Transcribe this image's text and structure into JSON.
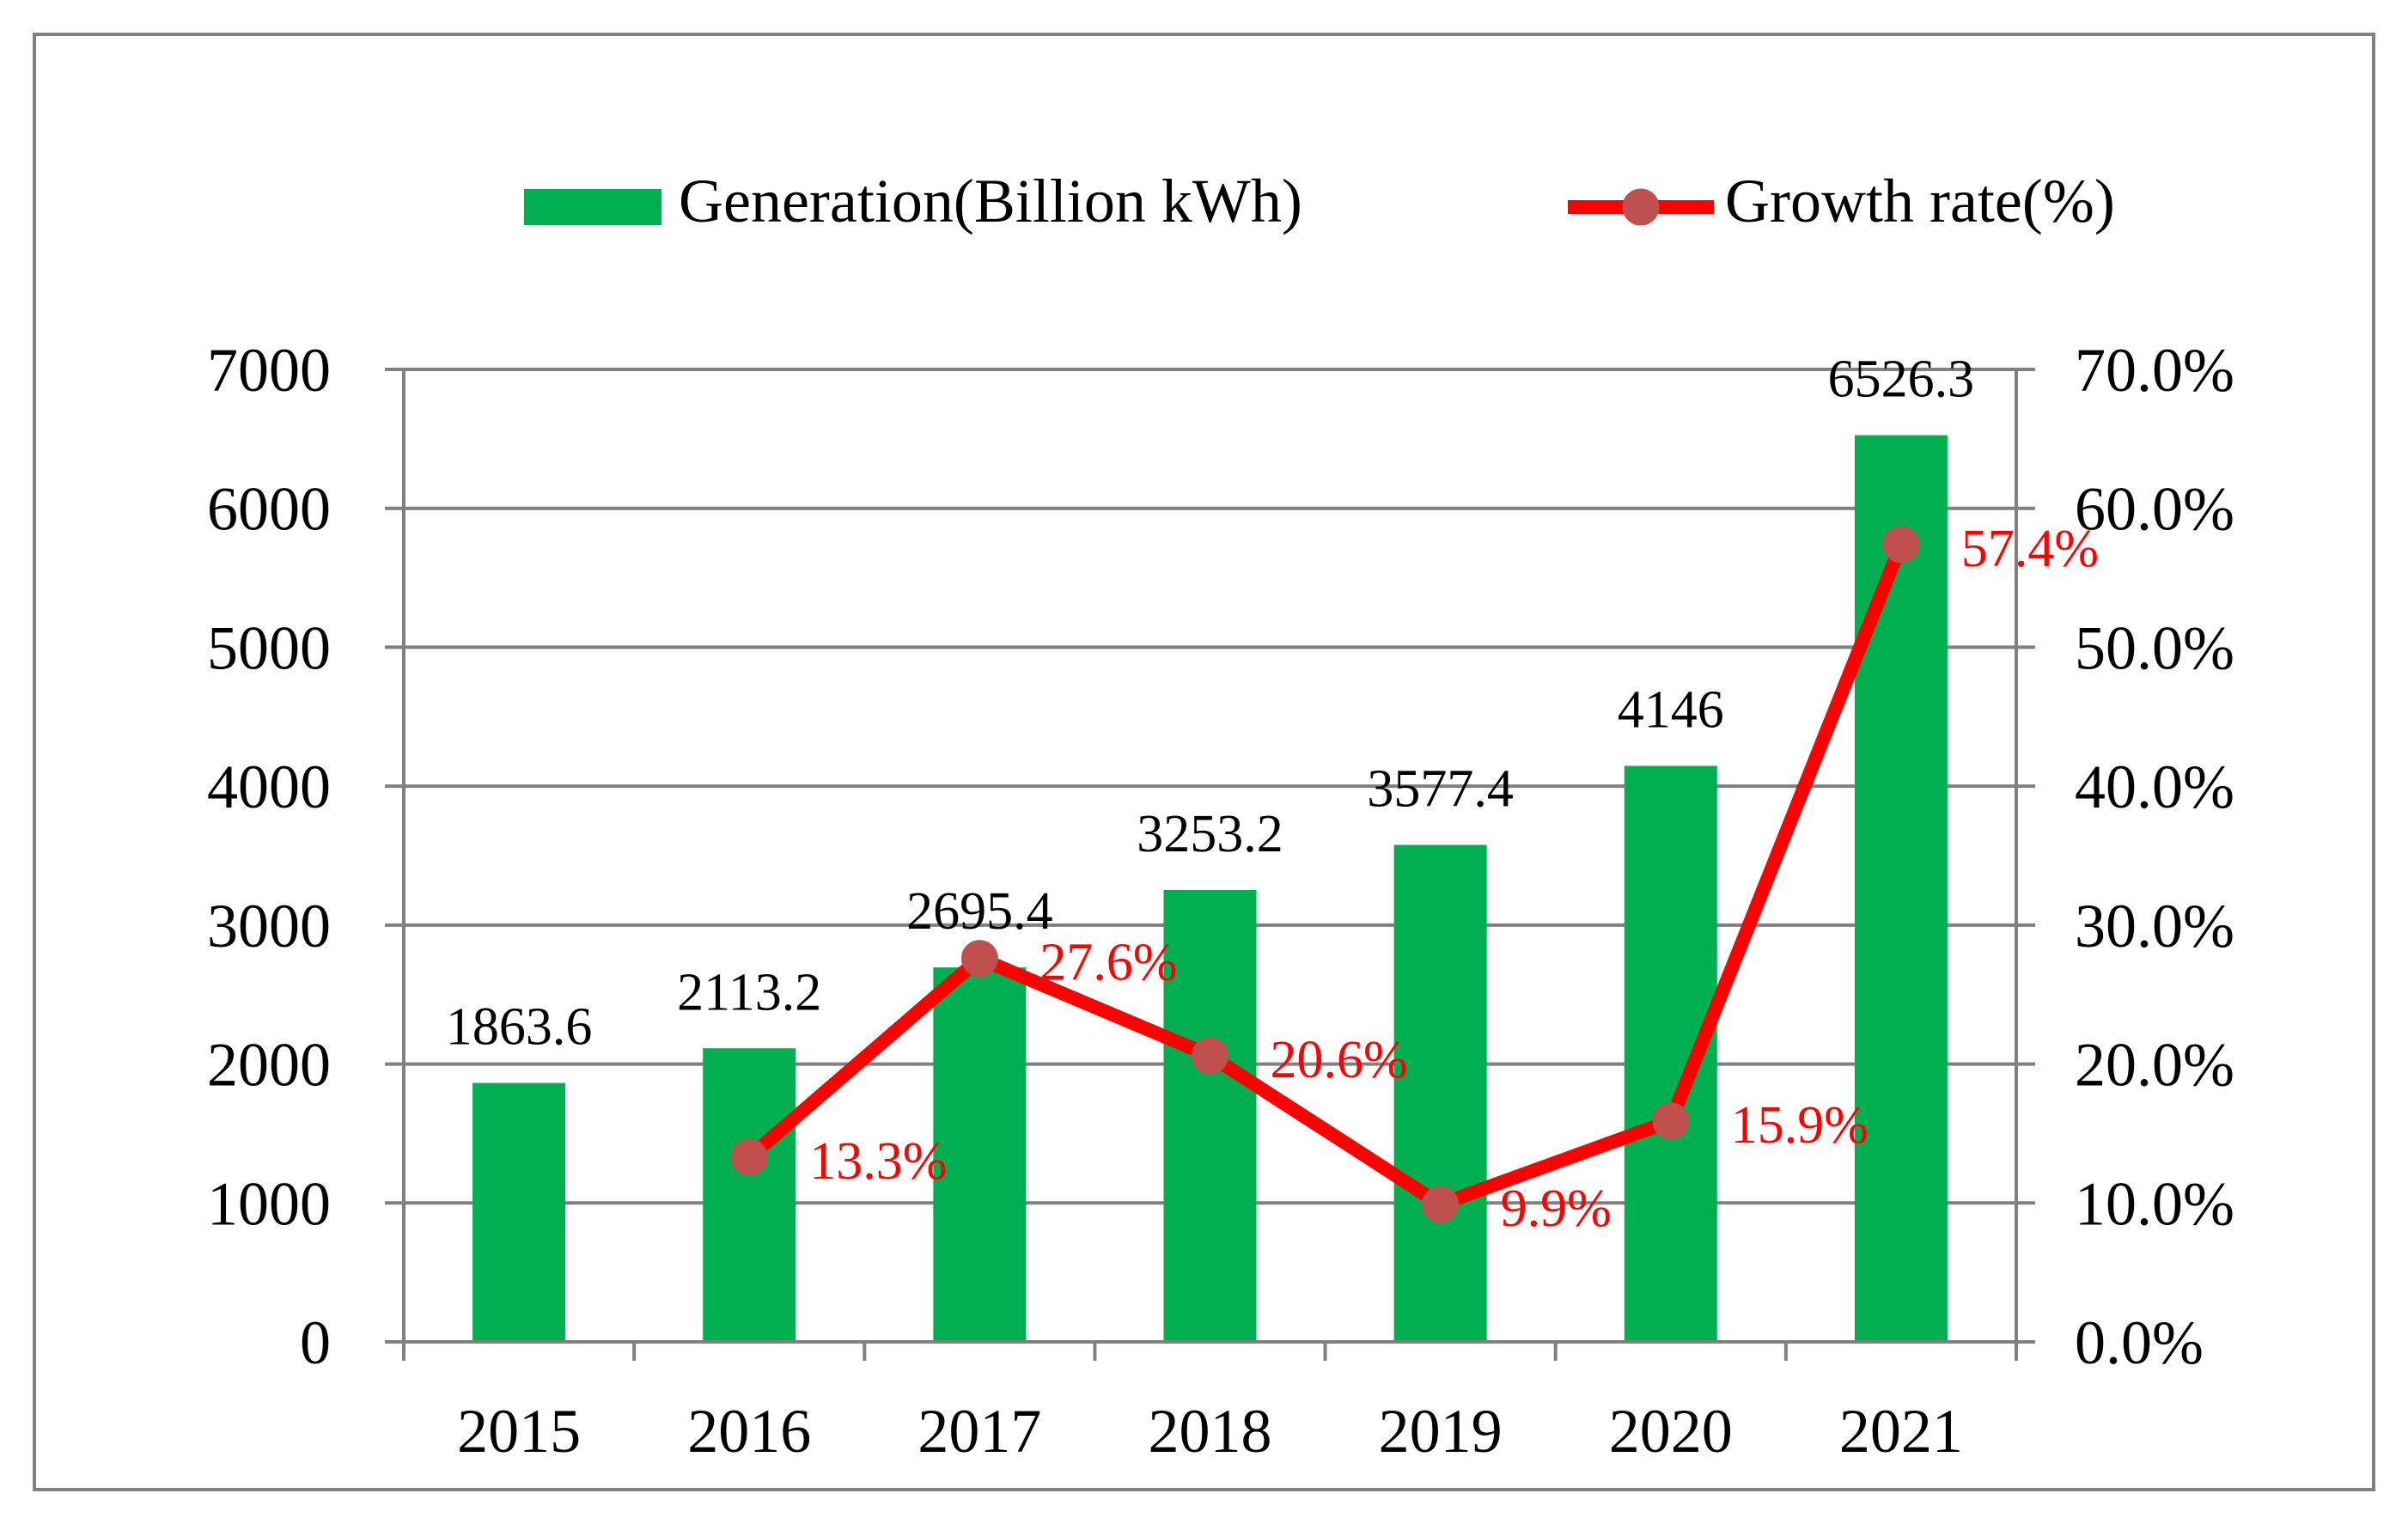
{
  "colors": {
    "bar": "#00B050",
    "line": "#FF0000",
    "marker": "#C0504D",
    "line_label": "#FF0000",
    "axis": "#808080",
    "text": "#000000",
    "frame": "#808080"
  },
  "legend": {
    "bar_label": "Generation(Billion kWh)",
    "line_label": "Growth rate(%)"
  },
  "chart_data": {
    "type": "bar+line",
    "categories": [
      "2015",
      "2016",
      "2017",
      "2018",
      "2019",
      "2020",
      "2021"
    ],
    "series": [
      {
        "name": "Generation(Billion kWh)",
        "kind": "bar",
        "axis": "left",
        "values": [
          1863.6,
          2113.2,
          2695.4,
          3253.2,
          3577.4,
          4146,
          6526.3
        ],
        "labels": [
          "1863.6",
          "2113.2",
          "2695.4",
          "3253.2",
          "3577.4",
          "4146",
          "6526.3"
        ]
      },
      {
        "name": "Growth rate(%)",
        "kind": "line",
        "axis": "right",
        "values": [
          null,
          13.3,
          27.6,
          20.6,
          9.9,
          15.9,
          57.4
        ],
        "labels": [
          null,
          "13.3%",
          "27.6%",
          "20.6%",
          "9.9%",
          "15.9%",
          "57.4%"
        ]
      }
    ],
    "y_left": {
      "min": 0,
      "max": 7000,
      "step": 1000,
      "ticks": [
        "0",
        "1000",
        "2000",
        "3000",
        "4000",
        "5000",
        "6000",
        "7000"
      ]
    },
    "y_right": {
      "min": 0,
      "max": 70,
      "step": 10,
      "ticks": [
        "0.0%",
        "10.0%",
        "20.0%",
        "30.0%",
        "40.0%",
        "50.0%",
        "60.0%",
        "70.0%"
      ]
    },
    "grid": true,
    "legend_position": "top"
  }
}
